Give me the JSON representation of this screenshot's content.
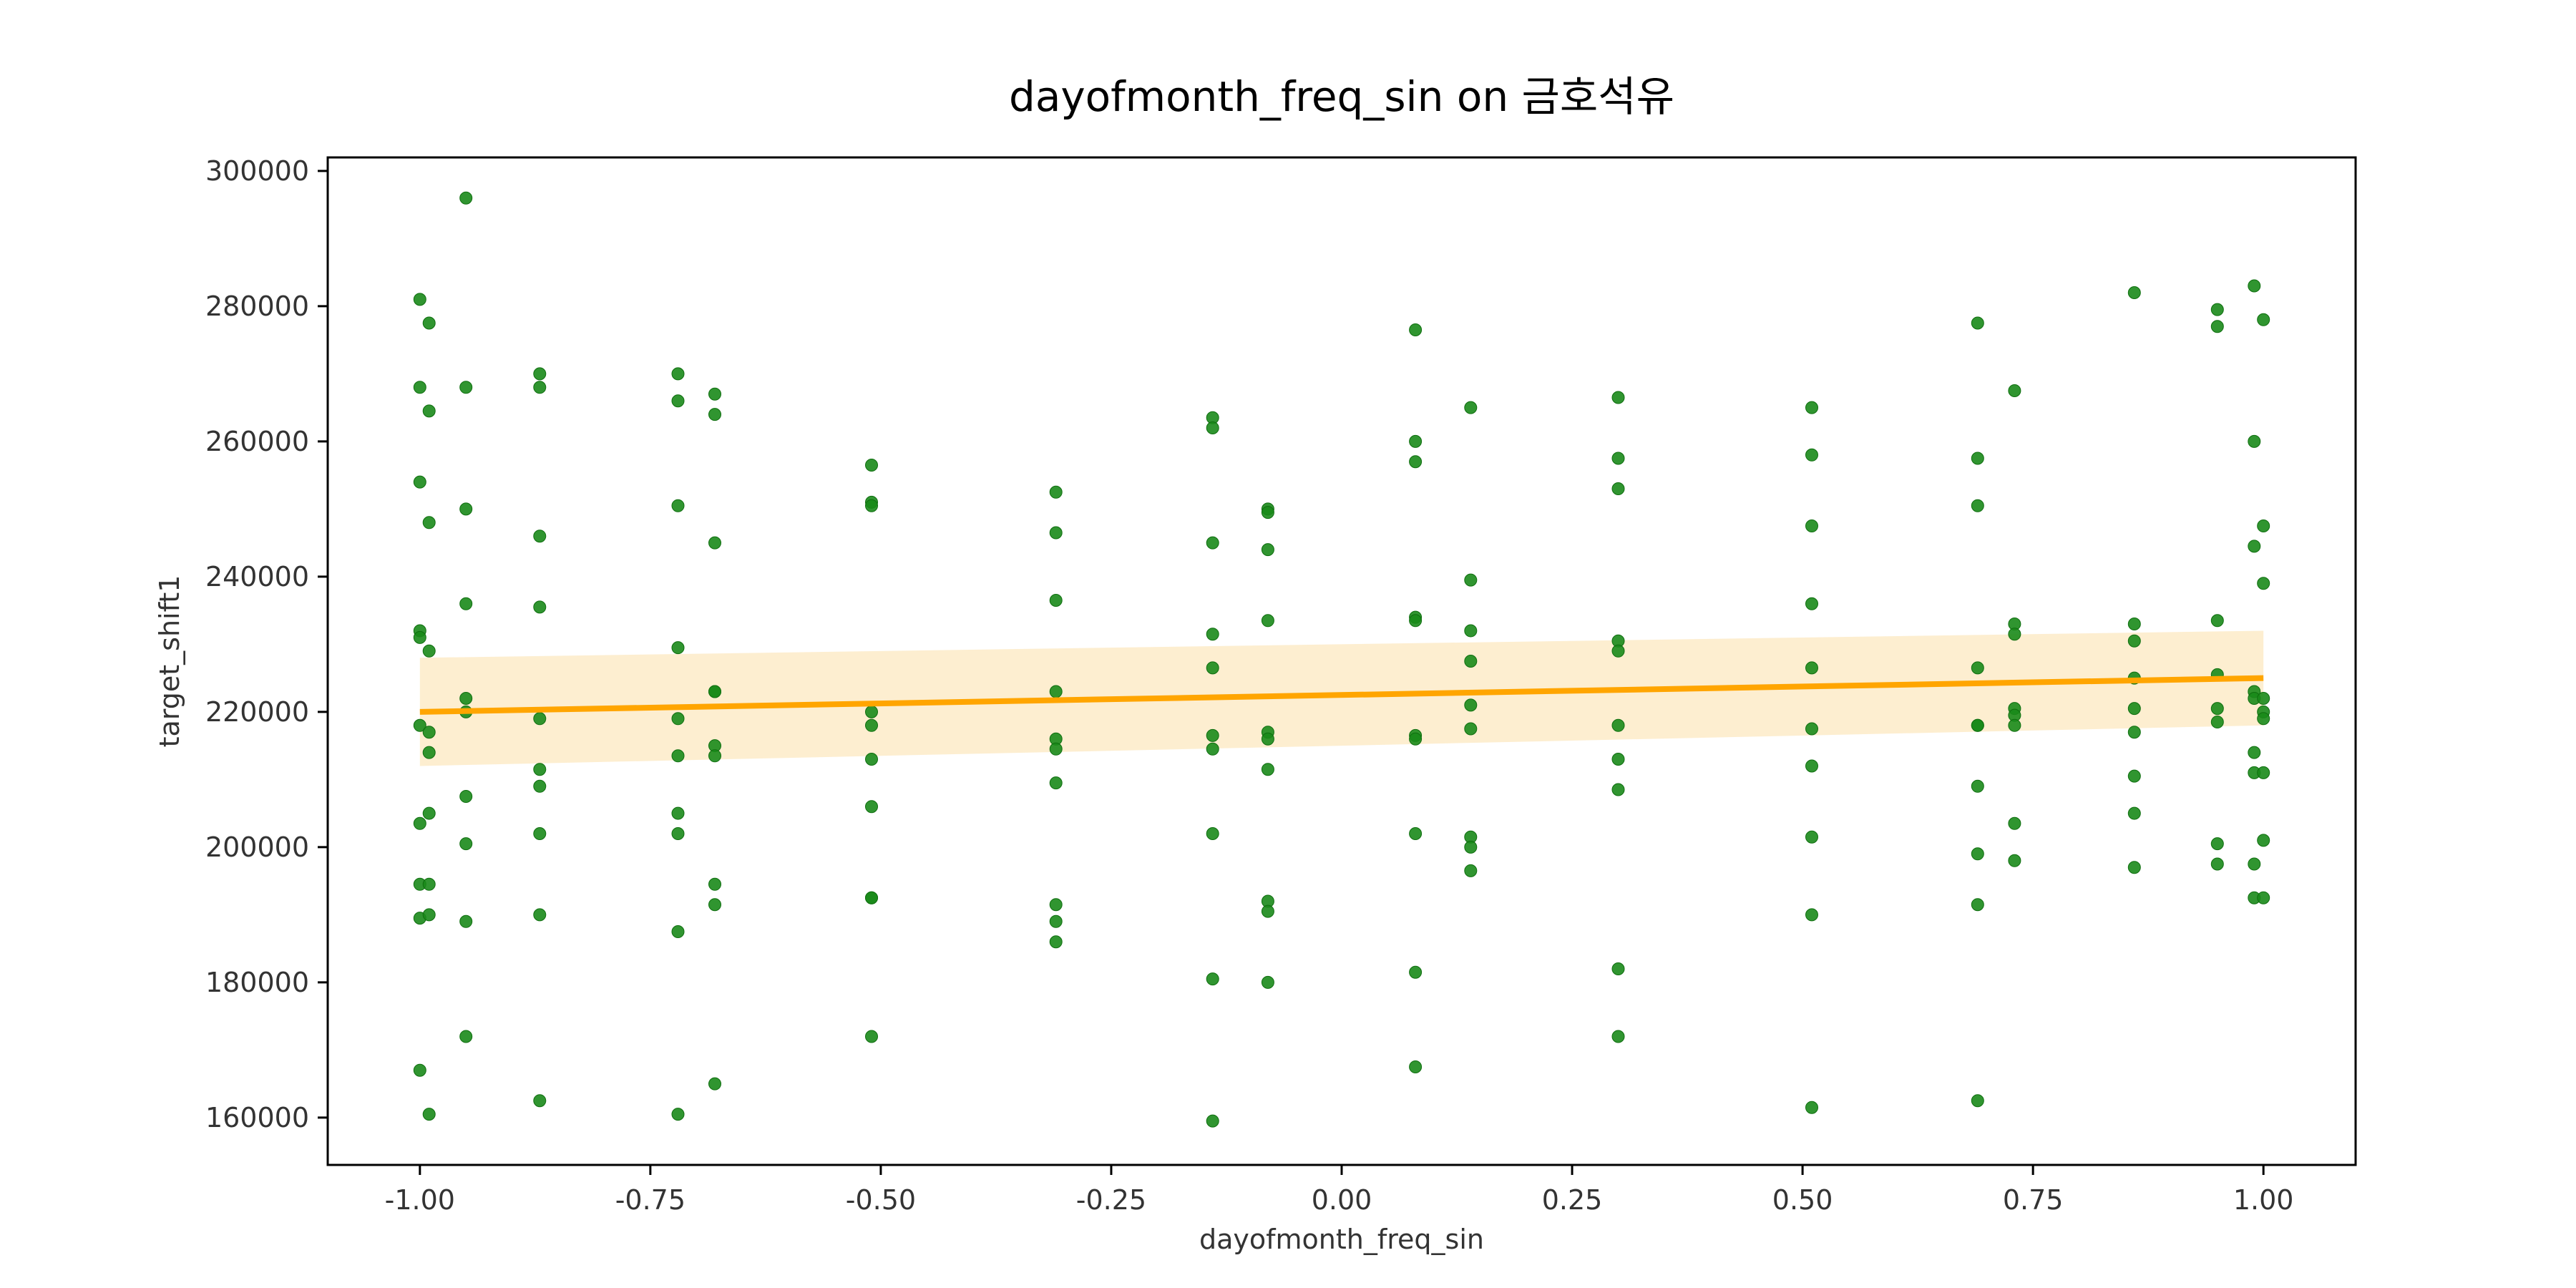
{
  "chart_data": {
    "type": "scatter",
    "title": "dayofmonth_freq_sin on 금호석유",
    "xlabel": "dayofmonth_freq_sin",
    "ylabel": "target_shift1",
    "xlim": [
      -1.1,
      1.1
    ],
    "ylim": [
      153000,
      302000
    ],
    "x_ticks": [
      -1.0,
      -0.75,
      -0.5,
      -0.25,
      0.0,
      0.25,
      0.5,
      0.75,
      1.0
    ],
    "x_tick_labels": [
      "-1.00",
      "-0.75",
      "-0.50",
      "-0.25",
      "0.00",
      "0.25",
      "0.50",
      "0.75",
      "1.00"
    ],
    "y_ticks": [
      160000,
      180000,
      200000,
      220000,
      240000,
      260000,
      280000,
      300000
    ],
    "y_tick_labels": [
      "160000",
      "180000",
      "200000",
      "220000",
      "240000",
      "260000",
      "280000",
      "300000"
    ],
    "grid": false,
    "colors": {
      "points": "#1a8a1a",
      "regression": "#ffa500",
      "confidence_band": "#fdebc8"
    },
    "regression": {
      "x": [
        -1.0,
        1.0
      ],
      "y": [
        220000,
        225000
      ],
      "ci_lower": [
        212000,
        218000
      ],
      "ci_upper": [
        228000,
        232000
      ]
    },
    "series": [
      {
        "x": -1.0,
        "y": [
          281000,
          268000,
          254000,
          232000,
          231000,
          218000,
          203500,
          194500,
          189500,
          167000
        ]
      },
      {
        "x": -0.99,
        "y": [
          277500,
          264500,
          248000,
          229000,
          217000,
          214000,
          205000,
          194500,
          190000,
          160500
        ]
      },
      {
        "x": -0.95,
        "y": [
          296000,
          268000,
          250000,
          236000,
          222000,
          220000,
          207500,
          200500,
          189000,
          172000
        ]
      },
      {
        "x": -0.87,
        "y": [
          270000,
          268000,
          246000,
          235500,
          219000,
          211500,
          209000,
          202000,
          190000,
          162500
        ]
      },
      {
        "x": -0.72,
        "y": [
          270000,
          266000,
          250500,
          229500,
          219000,
          213500,
          205000,
          202000,
          187500,
          160500
        ]
      },
      {
        "x": -0.68,
        "y": [
          267000,
          264000,
          245000,
          223000,
          223000,
          215000,
          213500,
          194500,
          191500,
          165000
        ]
      },
      {
        "x": -0.51,
        "y": [
          256500,
          251000,
          250500,
          220000,
          218000,
          213000,
          206000,
          192500,
          192500,
          172000
        ]
      },
      {
        "x": -0.31,
        "y": [
          252500,
          246500,
          236500,
          223000,
          216000,
          214500,
          209500,
          191500,
          189000,
          186000
        ]
      },
      {
        "x": -0.14,
        "y": [
          263500,
          262000,
          245000,
          231500,
          226500,
          216500,
          214500,
          202000,
          180500,
          159500
        ]
      },
      {
        "x": -0.08,
        "y": [
          250000,
          249500,
          244000,
          233500,
          217000,
          216000,
          211500,
          192000,
          190500,
          180000
        ]
      },
      {
        "x": 0.08,
        "y": [
          276500,
          260000,
          257000,
          234000,
          233500,
          216500,
          216000,
          202000,
          181500,
          167500
        ]
      },
      {
        "x": 0.14,
        "y": [
          265000,
          239500,
          232000,
          227500,
          221000,
          217500,
          201500,
          200000,
          196500
        ]
      },
      {
        "x": 0.3,
        "y": [
          266500,
          257500,
          253000,
          230500,
          229000,
          218000,
          213000,
          208500,
          182000,
          172000
        ]
      },
      {
        "x": 0.51,
        "y": [
          265000,
          258000,
          247500,
          236000,
          226500,
          217500,
          212000,
          201500,
          190000,
          161500
        ]
      },
      {
        "x": 0.69,
        "y": [
          277500,
          257500,
          250500,
          226500,
          218000,
          218000,
          209000,
          199000,
          191500,
          162500
        ]
      },
      {
        "x": 0.73,
        "y": [
          267500,
          233000,
          231500,
          220500,
          219500,
          218000,
          203500,
          198000
        ]
      },
      {
        "x": 0.86,
        "y": [
          282000,
          233000,
          230500,
          225000,
          220500,
          217000,
          210500,
          205000,
          197000
        ]
      },
      {
        "x": 0.95,
        "y": [
          279500,
          277000,
          233500,
          225500,
          220500,
          218500,
          200500,
          197500
        ]
      },
      {
        "x": 0.99,
        "y": [
          283000,
          260000,
          244500,
          223000,
          222000,
          214000,
          211000,
          197500,
          192500
        ]
      },
      {
        "x": 1.0,
        "y": [
          278000,
          247500,
          239000,
          222000,
          220000,
          219000,
          211000,
          201000,
          192500
        ]
      }
    ]
  }
}
